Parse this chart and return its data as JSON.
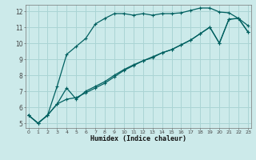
{
  "xlabel": "Humidex (Indice chaleur)",
  "ylabel": "",
  "bg_color": "#cceaea",
  "line_color": "#006060",
  "grid_color": "#aad4d4",
  "xlim": [
    0,
    23
  ],
  "ylim": [
    4.7,
    12.4
  ],
  "xticks": [
    0,
    1,
    2,
    3,
    4,
    5,
    6,
    7,
    8,
    9,
    10,
    11,
    12,
    13,
    14,
    15,
    16,
    17,
    18,
    19,
    20,
    21,
    22,
    23
  ],
  "yticks": [
    5,
    6,
    7,
    8,
    9,
    10,
    11,
    12
  ],
  "series": [
    {
      "x": [
        0,
        1,
        2,
        3,
        4,
        5,
        6,
        7,
        8,
        9,
        10,
        11,
        12,
        13,
        14,
        15,
        16,
        17,
        18,
        19,
        20,
        21,
        22,
        23
      ],
      "y": [
        5.5,
        5.0,
        5.5,
        7.3,
        9.3,
        9.8,
        10.3,
        11.2,
        11.55,
        11.85,
        11.85,
        11.75,
        11.85,
        11.75,
        11.85,
        11.85,
        11.9,
        12.05,
        12.2,
        12.2,
        11.95,
        11.9,
        11.55,
        11.1
      ]
    },
    {
      "x": [
        0,
        1,
        2,
        3,
        4,
        5,
        6,
        7,
        8,
        9,
        10,
        11,
        12,
        13,
        14,
        15,
        16,
        17,
        18,
        19,
        20,
        21,
        22,
        23
      ],
      "y": [
        5.5,
        5.0,
        5.5,
        6.2,
        6.5,
        6.6,
        6.9,
        7.2,
        7.5,
        7.9,
        8.3,
        8.6,
        8.9,
        9.15,
        9.4,
        9.6,
        9.9,
        10.2,
        10.6,
        11.0,
        10.0,
        11.5,
        11.55,
        10.7
      ]
    },
    {
      "x": [
        0,
        1,
        2,
        3,
        4,
        5,
        6,
        7,
        8,
        9,
        10,
        11,
        12,
        13,
        14,
        15,
        16,
        17,
        18,
        19,
        20,
        21,
        22,
        23
      ],
      "y": [
        5.5,
        5.0,
        5.5,
        6.2,
        7.2,
        6.5,
        7.0,
        7.3,
        7.6,
        8.0,
        8.35,
        8.65,
        8.9,
        9.1,
        9.4,
        9.6,
        9.9,
        10.2,
        10.6,
        11.0,
        10.0,
        11.5,
        11.55,
        10.7
      ]
    }
  ]
}
